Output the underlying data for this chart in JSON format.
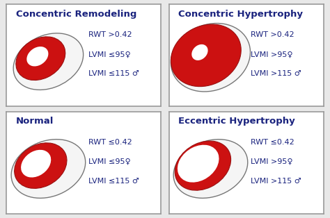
{
  "background_color": "#e8e8e8",
  "panel_background": "#ffffff",
  "border_color": "#999999",
  "text_color": "#1a237e",
  "panels": [
    {
      "title": "Concentric Remodeling",
      "lines": [
        "RWT >0.42",
        "LVMI ≤95♀",
        "LVMI ≤115 ♂"
      ],
      "heart_type": "concentric_remodeling",
      "row": 0,
      "col": 0
    },
    {
      "title": "Concentric Hypertrophy",
      "lines": [
        "RWT >0.42",
        "LVMI >95♀",
        "LVMI >115 ♂"
      ],
      "heart_type": "concentric_hypertrophy",
      "row": 0,
      "col": 1
    },
    {
      "title": "Normal",
      "lines": [
        "RWT ≤0.42",
        "LVMI ≤95♀",
        "LVMI ≤115 ♂"
      ],
      "heart_type": "normal",
      "row": 1,
      "col": 0
    },
    {
      "title": "Eccentric Hypertrophy",
      "lines": [
        "RWT ≤0.42",
        "LVMI >95♀",
        "LVMI >115 ♂"
      ],
      "heart_type": "eccentric_hypertrophy",
      "row": 1,
      "col": 1
    }
  ],
  "red_fill": "#cc1111",
  "white_fill": "#ffffff",
  "outline_color": "#777777",
  "title_fontsize": 9.5,
  "text_fontsize": 8.0
}
